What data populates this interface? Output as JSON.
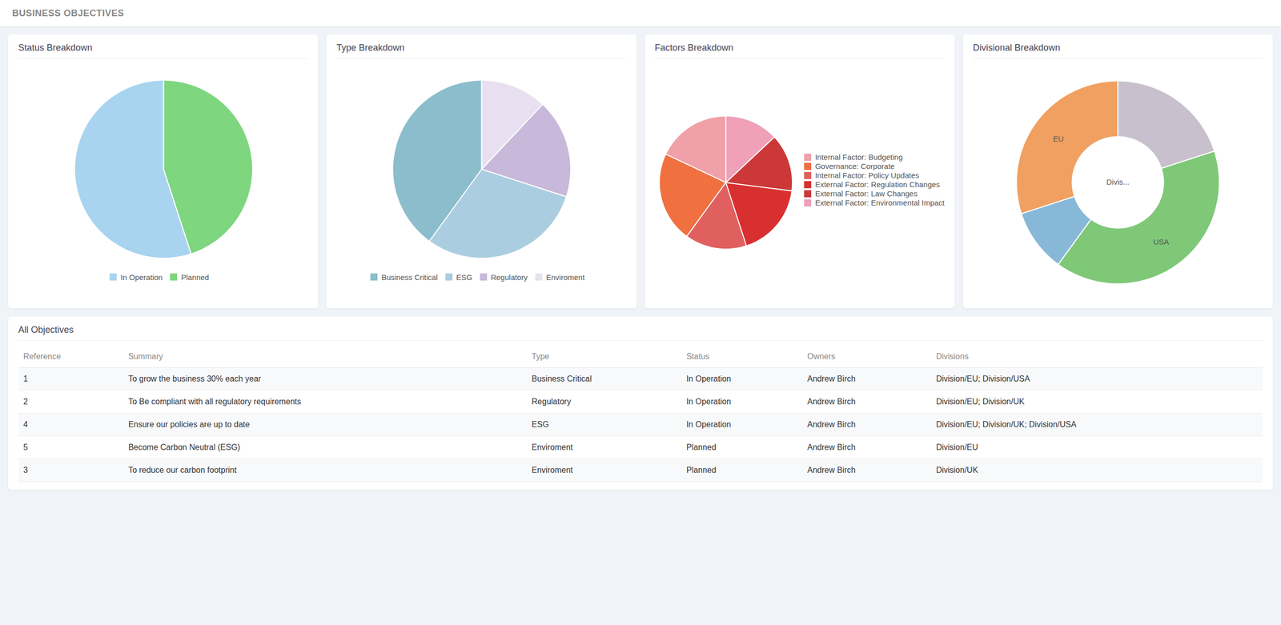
{
  "title": "BUSINESS OBJECTIVES",
  "chart_data": [
    {
      "type": "pie",
      "title": "Status Breakdown",
      "categories": [
        "In Operation",
        "Planned"
      ],
      "values": [
        55,
        45
      ],
      "colors": [
        "#a8d4f0",
        "#7ed67e"
      ],
      "legend": "bottom"
    },
    {
      "type": "pie",
      "title": "Type Breakdown",
      "categories": [
        "Business Critical",
        "ESG",
        "Regulatory",
        "Enviroment"
      ],
      "values": [
        40,
        30,
        18,
        12
      ],
      "colors": [
        "#8cbdcc",
        "#aacee0",
        "#c8b8da",
        "#e8e0f0"
      ],
      "legend": "bottom"
    },
    {
      "type": "pie",
      "title": "Factors Breakdown",
      "categories": [
        "Internal Factor: Budgeting",
        "Governance: Corporate",
        "Internal Factor: Policy Updates",
        "External Factor: Regulation Changes",
        "External Factor: Law Changes",
        "External Factor: Environmental Impact"
      ],
      "values": [
        18,
        22,
        15,
        18,
        14,
        13
      ],
      "colors": [
        "#f0a0a8",
        "#f07040",
        "#e06060",
        "#d83030",
        "#cc3838",
        "#f0a0b8"
      ],
      "legend": "right"
    },
    {
      "type": "donut",
      "title": "Divisional Breakdown",
      "categories": [
        "EU",
        null,
        "USA",
        null
      ],
      "values": [
        30,
        10,
        40,
        20
      ],
      "colors": [
        "#f0a060",
        "#88b8d8",
        "#7ec878",
        "#c8c0cc"
      ],
      "annotations": [
        "Divis..."
      ]
    },
    {
      "type": "table",
      "title": "All Objectives",
      "columns": [
        "Reference",
        "Summary",
        "Type",
        "Status",
        "Owners",
        "Divisions"
      ],
      "rows": [
        [
          "1",
          "To grow the business 30% each year",
          "Business Critical",
          "In Operation",
          "Andrew Birch",
          "Division/EU; Division/USA"
        ],
        [
          "2",
          "To Be compliant with all regulatory requirements",
          "Regulatory",
          "In Operation",
          "Andrew Birch",
          "Division/EU; Division/UK"
        ],
        [
          "4",
          "Ensure our policies are up to date",
          "ESG",
          "In Operation",
          "Andrew Birch",
          "Division/EU; Division/UK; Division/USA"
        ],
        [
          "5",
          "Become Carbon Neutral (ESG)",
          "Enviroment",
          "Planned",
          "Andrew Birch",
          "Division/EU"
        ],
        [
          "3",
          "To reduce our carbon footprint",
          "Enviroment",
          "Planned",
          "Andrew Birch",
          "Division/UK"
        ]
      ]
    }
  ]
}
